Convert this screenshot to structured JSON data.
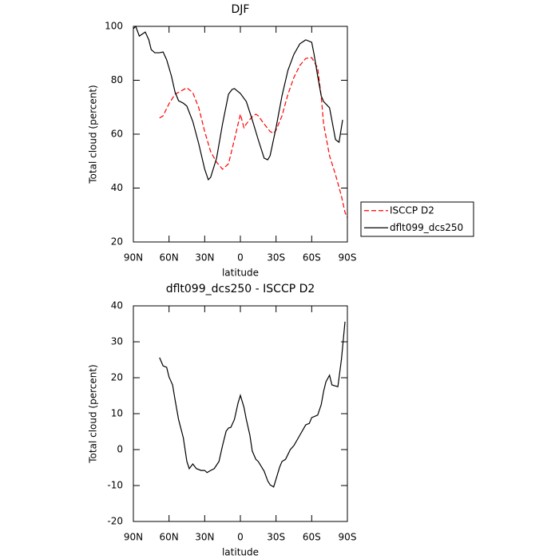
{
  "chart_data": [
    {
      "type": "line",
      "title": "DJF",
      "xlabel": "latitude",
      "ylabel": "Total cloud (percent)",
      "xlim": [
        90,
        -90
      ],
      "xticks": [
        {
          "value": 90,
          "label": "90N"
        },
        {
          "value": 60,
          "label": "60N"
        },
        {
          "value": 30,
          "label": "30N"
        },
        0,
        {
          "value": -30,
          "label": "30S"
        },
        {
          "value": -60,
          "label": "60S"
        },
        {
          "value": -90,
          "label": "90S"
        }
      ],
      "ylim": [
        20,
        100
      ],
      "yticks": [
        20,
        40,
        60,
        80,
        100
      ],
      "legend": "right",
      "series": [
        {
          "name": "ISCCP D2",
          "color": "#ff0000",
          "dash": true,
          "x": [
            68,
            65,
            60,
            55,
            50,
            45,
            40,
            35,
            30,
            25,
            20,
            15,
            10,
            5,
            0,
            -3,
            -5,
            -10,
            -13,
            -15,
            -20,
            -25,
            -28,
            -30,
            -35,
            -40,
            -45,
            -50,
            -55,
            -60,
            -65,
            -68,
            -70,
            -75,
            -80,
            -85,
            -88,
            -90
          ],
          "values": [
            66,
            66.8,
            71.3,
            74.8,
            76,
            77.2,
            75.4,
            69.8,
            61,
            53.5,
            49.6,
            47,
            49,
            58,
            67.4,
            62.4,
            63.8,
            66.5,
            67.4,
            66.8,
            63.8,
            61,
            60.3,
            61.5,
            66.8,
            74.8,
            81,
            85.5,
            88.1,
            88.4,
            84.6,
            74,
            63.8,
            52,
            45,
            37,
            31,
            29
          ]
        },
        {
          "name": "dflt099_dcs250",
          "color": "#000000",
          "dash": false,
          "x": [
            90,
            88,
            85,
            80,
            77,
            75,
            72,
            68,
            65,
            62,
            58,
            55,
            52,
            48,
            45,
            40,
            35,
            30,
            27,
            25,
            20,
            15,
            10,
            7,
            5,
            0,
            -5,
            -10,
            -15,
            -20,
            -23,
            -25,
            -30,
            -35,
            -40,
            -45,
            -50,
            -55,
            -60,
            -62,
            -65,
            -68,
            -70,
            -75,
            -80,
            -83,
            -86
          ],
          "values": [
            99.1,
            100,
            96.4,
            97.9,
            95,
            91.4,
            90.2,
            90.2,
            90.5,
            87.6,
            81.6,
            75.7,
            72.4,
            71.5,
            70.4,
            64.7,
            56.4,
            47,
            43.1,
            44,
            51.1,
            63.8,
            74.8,
            76.6,
            76.9,
            75.1,
            72.1,
            65.3,
            58,
            51.1,
            50.5,
            52,
            62.4,
            74.2,
            83.7,
            89.6,
            93.5,
            95,
            94.1,
            89.6,
            81.6,
            74.2,
            72.1,
            69.8,
            58,
            57,
            65.3
          ]
        }
      ]
    },
    {
      "type": "line",
      "title": "dflt099_dcs250 - ISCCP D2",
      "xlabel": "latitude",
      "ylabel": "Total cloud (percent)",
      "xlim": [
        90,
        -90
      ],
      "xticks": [
        {
          "value": 90,
          "label": "90N"
        },
        {
          "value": 60,
          "label": "60N"
        },
        {
          "value": 30,
          "label": "30N"
        },
        0,
        {
          "value": -30,
          "label": "30S"
        },
        {
          "value": -60,
          "label": "60S"
        },
        {
          "value": -90,
          "label": "90S"
        }
      ],
      "ylim": [
        -20,
        40
      ],
      "yticks": [
        -20,
        -10,
        0,
        10,
        20,
        30,
        40
      ],
      "series": [
        {
          "color": "#000000",
          "dash": false,
          "x": [
            68,
            65,
            62,
            60,
            57,
            55,
            52,
            48,
            45,
            43,
            40,
            37,
            33,
            30,
            28,
            25,
            22,
            18,
            15,
            12,
            10,
            8,
            5,
            2,
            0,
            -3,
            -5,
            -8,
            -10,
            -13,
            -15,
            -20,
            -23,
            -25,
            -28,
            -30,
            -33,
            -35,
            -38,
            -42,
            -45,
            -50,
            -55,
            -58,
            -60,
            -65,
            -68,
            -70,
            -72,
            -75,
            -77,
            -79,
            -82,
            -85,
            -88
          ],
          "values": [
            25.6,
            23.3,
            22.9,
            20.2,
            18,
            14,
            8.4,
            3.3,
            -3.3,
            -5.3,
            -4,
            -5.3,
            -5.8,
            -5.8,
            -6.4,
            -5.8,
            -5.3,
            -3.3,
            1.1,
            5.1,
            6,
            6.2,
            8.4,
            12.9,
            15.1,
            11.8,
            8.4,
            4,
            -0.4,
            -2.7,
            -3.3,
            -6,
            -8.7,
            -9.8,
            -10.4,
            -8.2,
            -4.9,
            -3.3,
            -2.7,
            0,
            1.1,
            4,
            6.9,
            7.3,
            8.9,
            9.6,
            12.5,
            16.2,
            18.9,
            20.7,
            18,
            17.8,
            17.5,
            25.1,
            35.6
          ]
        }
      ]
    }
  ]
}
